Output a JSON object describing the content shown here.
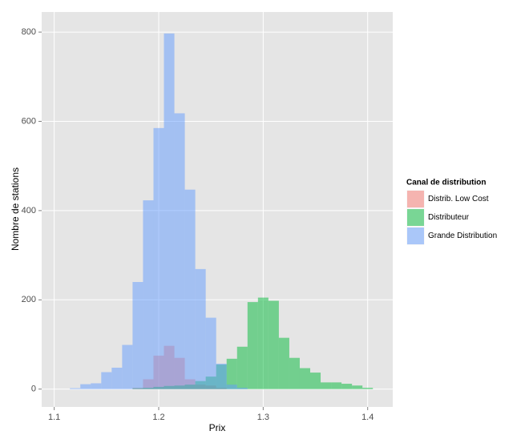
{
  "chart_data": {
    "type": "histogram",
    "x_label": "Prix",
    "y_label": "Nombre de stations",
    "legend_title": "Canal de distribution",
    "bins": [
      1.115,
      1.125,
      1.135,
      1.145,
      1.155,
      1.165,
      1.175,
      1.185,
      1.195,
      1.205,
      1.215,
      1.225,
      1.235,
      1.245,
      1.255,
      1.265,
      1.275,
      1.285,
      1.295,
      1.305,
      1.315,
      1.325,
      1.335,
      1.345,
      1.355,
      1.365,
      1.375,
      1.385,
      1.395,
      1.405
    ],
    "series": [
      {
        "name": "Distrib. Low Cost",
        "color": "#F8766D",
        "values": [
          0,
          0,
          0,
          0,
          0,
          0,
          3,
          22,
          75,
          97,
          70,
          22,
          10,
          8,
          3,
          0,
          0,
          0,
          0,
          0,
          0,
          0,
          0,
          0,
          0,
          0,
          0,
          0,
          0
        ]
      },
      {
        "name": "Distributeur",
        "color": "#00BA38",
        "values": [
          0,
          0,
          0,
          0,
          0,
          0,
          2,
          3,
          5,
          7,
          8,
          10,
          18,
          28,
          55,
          68,
          95,
          195,
          205,
          198,
          115,
          70,
          47,
          37,
          15,
          15,
          12,
          8,
          3
        ]
      },
      {
        "name": "Grande Distribution",
        "color": "#619CFF",
        "values": [
          2,
          11,
          13,
          38,
          48,
          99,
          240,
          423,
          585,
          797,
          618,
          447,
          269,
          160,
          57,
          10,
          3,
          0,
          0,
          0,
          0,
          0,
          0,
          0,
          0,
          0,
          0,
          0,
          0
        ]
      }
    ],
    "opacity": 0.5,
    "xlim": [
      1.088,
      1.424
    ],
    "xticks": [
      1.1,
      1.2,
      1.3,
      1.4
    ],
    "ylim": [
      -40,
      845
    ],
    "yticks": [
      0,
      200,
      400,
      600,
      800
    ],
    "grid": true,
    "legend_position": "right"
  }
}
